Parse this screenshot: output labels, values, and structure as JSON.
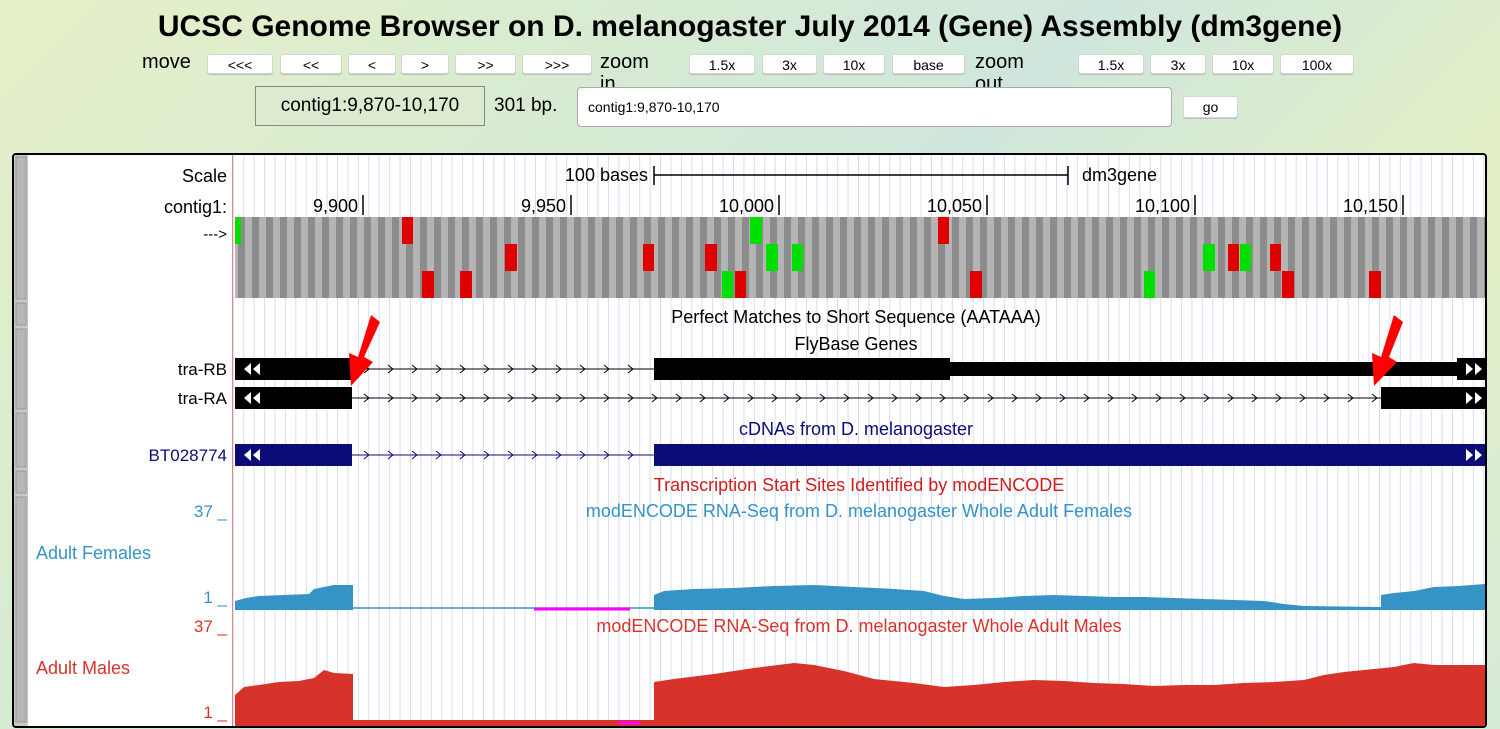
{
  "header": {
    "title": "UCSC Genome Browser on D. melanogaster July 2014 (Gene) Assembly (dm3gene)"
  },
  "nav": {
    "move_label": "move",
    "move_buttons": [
      "<<<",
      "<<",
      "<",
      ">",
      ">>",
      ">>>"
    ],
    "zoom_in_label": "zoom in",
    "zoom_in_buttons": [
      "1.5x",
      "3x",
      "10x",
      "base"
    ],
    "zoom_out_label": "zoom out",
    "zoom_out_buttons": [
      "1.5x",
      "3x",
      "10x",
      "100x"
    ]
  },
  "position": {
    "display": "contig1:9,870-10,170",
    "size": "301 bp.",
    "input_value": "contig1:9,870-10,170",
    "go_label": "go"
  },
  "tracks": {
    "scale_label": "Scale",
    "scale_bar_text": "100 bases",
    "assembly_label": "dm3gene",
    "chrom_label": "contig1:",
    "ticks": [
      "9,900",
      "9,950",
      "10,000",
      "10,050",
      "10,100",
      "10,150"
    ],
    "frame_arrow": "--->",
    "aataaa_title": "Perfect Matches to Short Sequence (AATAAA)",
    "flybase_title": "FlyBase Genes",
    "gene_labels": [
      "tra-RB",
      "tra-RA"
    ],
    "cdna_title": "cDNAs from D. melanogaster",
    "cdna_label": "BT028774",
    "tss_title": "Transcription Start Sites Identified by modENCODE",
    "females_title": "modENCODE RNA-Seq from D. melanogaster Whole Adult Females",
    "females_label": "Adult Females",
    "females_max": "37 _",
    "females_min": "1 _",
    "males_title": "modENCODE RNA-Seq from D. melanogaster Whole Adult Males",
    "males_label": "Adult Males",
    "males_max": "37 _",
    "males_min": "1 _"
  },
  "colors": {
    "cdna": "#0c0c78",
    "females": "#3593c5",
    "males": "#d8332a",
    "tss": "#d01c1c",
    "stop_red": "#e00000",
    "start_green": "#00e000",
    "arrow_red": "#ff0000"
  }
}
